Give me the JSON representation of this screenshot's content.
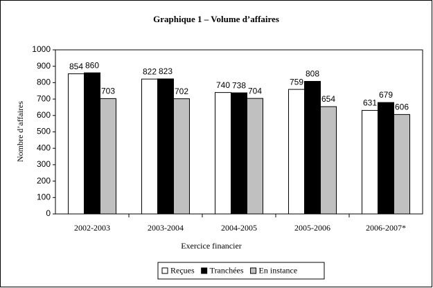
{
  "chart_data": {
    "type": "bar",
    "title": "Graphique 1 – Volume d’affaires",
    "x_label": "Exercice financier",
    "y_label": "Nombre d’affaires",
    "categories": [
      "2002-2003",
      "2003-2004",
      "2004-2005",
      "2005-2006",
      "2006-2007*"
    ],
    "series": [
      {
        "name": "Reçues",
        "color": "#ffffff",
        "values": [
          854,
          822,
          740,
          759,
          631
        ]
      },
      {
        "name": "Tranchées",
        "color": "#000000",
        "values": [
          860,
          823,
          738,
          808,
          679
        ]
      },
      {
        "name": "En instance",
        "color": "#c0c0c0",
        "values": [
          703,
          702,
          704,
          654,
          606
        ]
      }
    ],
    "ylim": [
      0,
      1000
    ],
    "yticks": [
      0,
      100,
      200,
      300,
      400,
      500,
      600,
      700,
      800,
      900,
      1000
    ],
    "legend": "bottom"
  }
}
